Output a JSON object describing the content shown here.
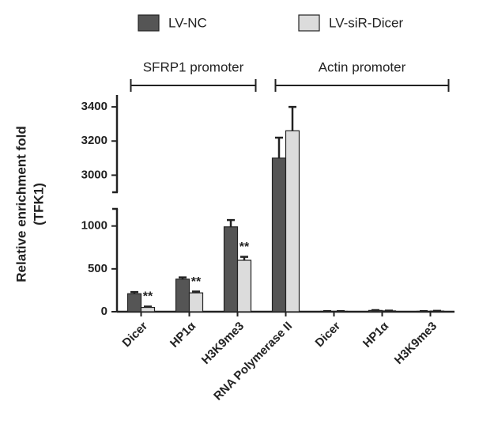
{
  "chart_data": {
    "type": "bar",
    "ylabel": [
      "Relative enrichment fold",
      "(TFK1)"
    ],
    "categories": [
      "Dicer",
      "HP1α",
      "H3K9me3",
      "RNA Polymerase II",
      "Dicer",
      "HP1α",
      "H3K9me3"
    ],
    "series": [
      {
        "name": "LV-NC",
        "color": "#555555",
        "values": [
          210,
          380,
          990,
          3100,
          5,
          15,
          5
        ],
        "errors": [
          20,
          20,
          80,
          120,
          2,
          3,
          2
        ]
      },
      {
        "name": "LV-siR-Dicer",
        "color": "#dcdcdc",
        "values": [
          50,
          220,
          600,
          3260,
          5,
          10,
          8
        ],
        "errors": [
          10,
          15,
          40,
          140,
          2,
          3,
          2
        ]
      }
    ],
    "groups": [
      {
        "label": "SFRP1 promoter",
        "from": 0,
        "to": 2
      },
      {
        "label": "Actin promoter",
        "from": 3,
        "to": 6
      }
    ],
    "annotations": [
      {
        "text": "**",
        "series": 1,
        "category": 0
      },
      {
        "text": "**",
        "series": 1,
        "category": 1
      },
      {
        "text": "**",
        "series": 1,
        "category": 2
      }
    ],
    "y_segments": [
      {
        "ylim": [
          0,
          1200
        ],
        "yticks": [
          0,
          500,
          1000
        ]
      },
      {
        "ylim": [
          2900,
          3470
        ],
        "yticks": [
          3000,
          3200,
          3400
        ]
      }
    ],
    "legend": "top"
  }
}
